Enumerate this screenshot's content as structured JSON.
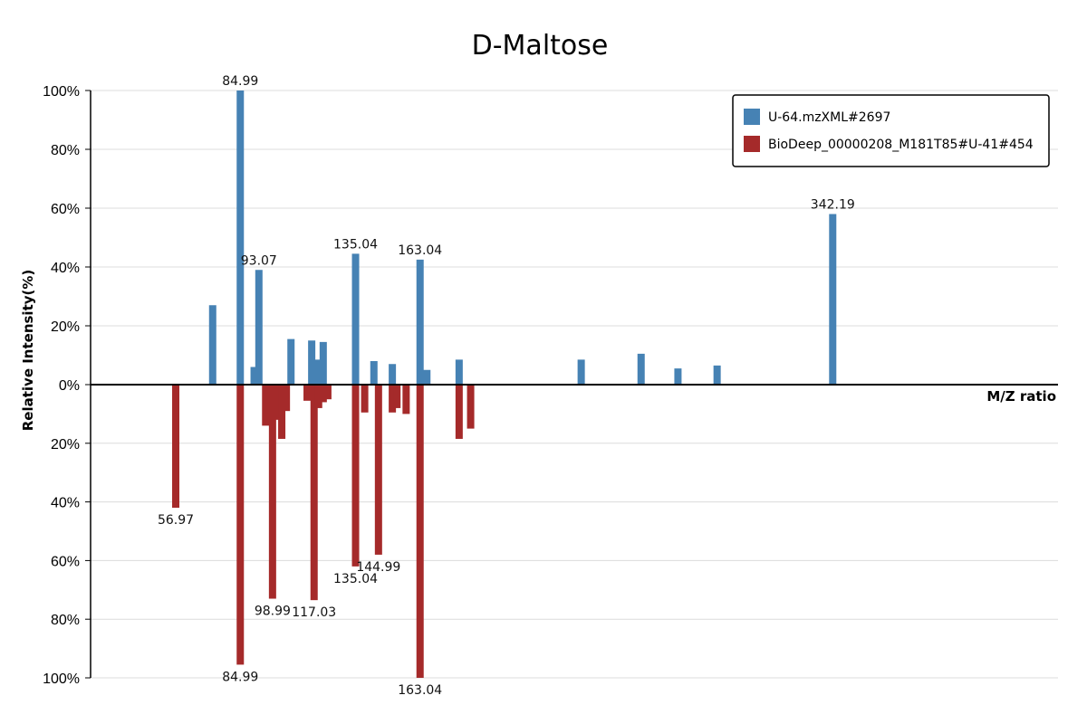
{
  "chart_data": {
    "type": "bar",
    "title": "D-Maltose",
    "xlabel": "M/Z ratio",
    "ylabel": "Relative Intensity(%)",
    "xlim": [
      20,
      440
    ],
    "ylim_top": [
      0,
      100
    ],
    "ylim_bottom": [
      0,
      100
    ],
    "yticks_top": [
      "0%",
      "20%",
      "40%",
      "60%",
      "80%",
      "100%"
    ],
    "yticks_bottom": [
      "20%",
      "40%",
      "60%",
      "80%",
      "100%"
    ],
    "grid": true,
    "legend_position": "top-right",
    "series": [
      {
        "name": "U-64.mzXML#2697",
        "color": "#4682b4",
        "direction": "up",
        "peaks": [
          {
            "mz": 73.0,
            "value": 27
          },
          {
            "mz": 84.99,
            "value": 100,
            "label": "84.99"
          },
          {
            "mz": 91.0,
            "value": 6
          },
          {
            "mz": 93.07,
            "value": 39,
            "label": "93.07"
          },
          {
            "mz": 107.0,
            "value": 15.5
          },
          {
            "mz": 116.0,
            "value": 15
          },
          {
            "mz": 119.0,
            "value": 8.5
          },
          {
            "mz": 121.0,
            "value": 14.5
          },
          {
            "mz": 135.04,
            "value": 44.5,
            "label": "135.04"
          },
          {
            "mz": 143.0,
            "value": 8
          },
          {
            "mz": 151.0,
            "value": 7
          },
          {
            "mz": 163.04,
            "value": 42.5,
            "label": "163.04"
          },
          {
            "mz": 166.0,
            "value": 5
          },
          {
            "mz": 180.0,
            "value": 8.5
          },
          {
            "mz": 233.0,
            "value": 8.5
          },
          {
            "mz": 259.0,
            "value": 10.5
          },
          {
            "mz": 275.0,
            "value": 5.5
          },
          {
            "mz": 292.0,
            "value": 6.5
          },
          {
            "mz": 342.19,
            "value": 58,
            "label": "342.19"
          }
        ]
      },
      {
        "name": "BioDeep_00000208_M181T85#U-41#454",
        "color": "#a52a2a",
        "direction": "down",
        "peaks": [
          {
            "mz": 56.97,
            "value": 42,
            "label": "56.97"
          },
          {
            "mz": 84.99,
            "value": 95.5,
            "label": "84.99"
          },
          {
            "mz": 96.0,
            "value": 14
          },
          {
            "mz": 98.99,
            "value": 73,
            "label": "98.99"
          },
          {
            "mz": 101.0,
            "value": 12
          },
          {
            "mz": 103.0,
            "value": 18.5
          },
          {
            "mz": 105.0,
            "value": 9
          },
          {
            "mz": 114.0,
            "value": 5.5
          },
          {
            "mz": 117.03,
            "value": 73.5,
            "label": "117.03"
          },
          {
            "mz": 119.0,
            "value": 8
          },
          {
            "mz": 121.0,
            "value": 6
          },
          {
            "mz": 123.0,
            "value": 5
          },
          {
            "mz": 135.04,
            "value": 62,
            "label": "135.04"
          },
          {
            "mz": 139.0,
            "value": 9.5
          },
          {
            "mz": 144.99,
            "value": 58,
            "label": "144.99"
          },
          {
            "mz": 151.0,
            "value": 9.5
          },
          {
            "mz": 153.0,
            "value": 8
          },
          {
            "mz": 157.0,
            "value": 10
          },
          {
            "mz": 163.04,
            "value": 100,
            "label": "163.04"
          },
          {
            "mz": 180.0,
            "value": 18.5
          },
          {
            "mz": 185.0,
            "value": 15
          }
        ]
      }
    ]
  }
}
